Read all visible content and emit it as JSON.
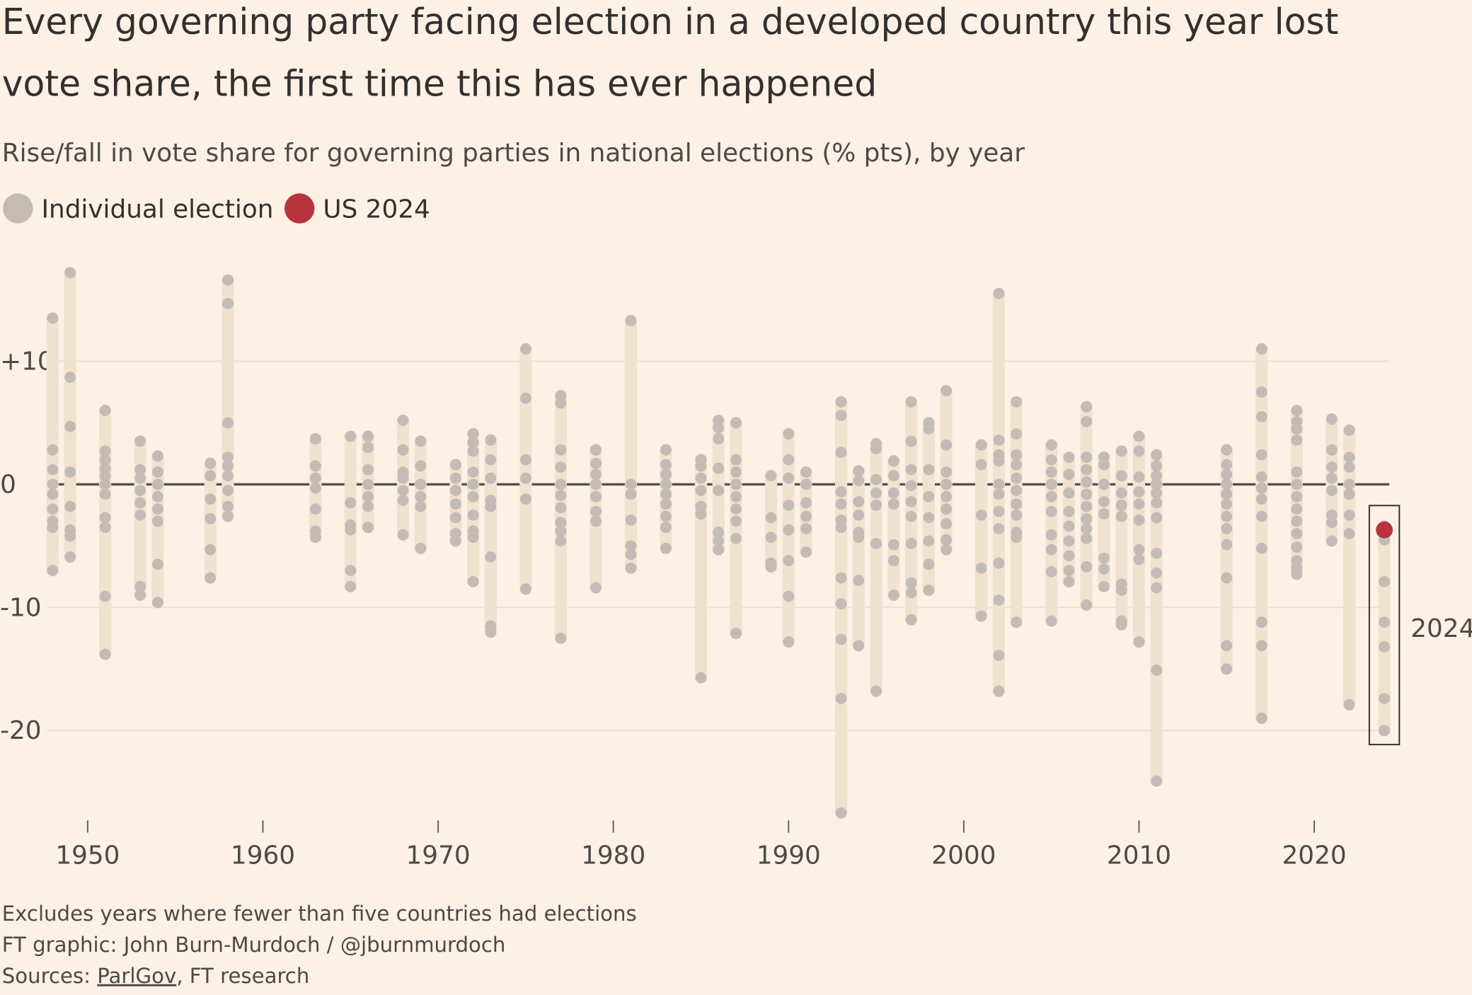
{
  "chart_data": {
    "type": "strip",
    "title_lines": [
      "Every governing party facing election in a developed country this year lost",
      "vote share, the first time this has ever happened"
    ],
    "subtitle": "Rise/fall in vote share for governing parties in national elections (% pts), by year",
    "annotation": "2024",
    "notes": [
      "Excludes years where fewer than five countries had elections",
      "FT graphic: John Burn-Murdoch / @jburnmurdoch"
    ],
    "sources": {
      "label": "Sources:",
      "link": "ParlGov",
      "rest": ", FT research"
    },
    "xlim": [
      1945,
      2029
    ],
    "ylim": [
      -27,
      18
    ],
    "xticks": [
      1950,
      1960,
      1970,
      1980,
      1990,
      2000,
      2010,
      2020
    ],
    "yticks": [
      {
        "value": 10,
        "label": "+10"
      },
      0,
      -10,
      -20
    ],
    "grid": true,
    "x": [
      1948,
      1949,
      1951,
      1953,
      1954,
      1957,
      1958,
      1963,
      1965,
      1966,
      1968,
      1969,
      1971,
      1972,
      1973,
      1975,
      1977,
      1979,
      1981,
      1983,
      1985,
      1986,
      1987,
      1989,
      1990,
      1991,
      1993,
      1994,
      1995,
      1996,
      1997,
      1998,
      1999,
      2001,
      2002,
      2003,
      2005,
      2006,
      2007,
      2008,
      2009,
      2010,
      2011,
      2015,
      2017,
      2019,
      2021,
      2022,
      2024
    ],
    "series": [
      {
        "name": "Individual election",
        "color": "#c4bcb4",
        "values": [
          [
            13.5,
            2.8,
            1.2,
            0,
            -0.8,
            -2,
            -3,
            -3.5,
            -7
          ],
          [
            17.2,
            8.7,
            4.7,
            1,
            -1.8,
            -3.7,
            -4.2,
            -5.9
          ],
          [
            6,
            2.7,
            2,
            1.3,
            0.7,
            0,
            -0.8,
            -2.7,
            -3.5,
            -9.1,
            -13.8
          ],
          [
            3.5,
            1.2,
            0.5,
            -0.5,
            -1.5,
            -2.5,
            -8.3,
            -9
          ],
          [
            2.3,
            1,
            0,
            -1,
            -2,
            -3,
            -6.5,
            -9.6
          ],
          [
            1.7,
            0.7,
            -1.2,
            -2.8,
            -5.3,
            -7.6
          ],
          [
            16.6,
            14.7,
            5,
            2.2,
            1.5,
            0.7,
            -0.5,
            -1.8,
            -2.6
          ],
          [
            3.7,
            1.5,
            0.5,
            -0.3,
            -2,
            -3.8,
            -4.3
          ],
          [
            3.9,
            -1.5,
            -3.3,
            -3.7,
            -7,
            -8.3
          ],
          [
            3.9,
            3,
            1.2,
            0,
            -1,
            -1.8,
            -3.5
          ],
          [
            5.2,
            2.8,
            1,
            0.5,
            -0.5,
            -1.3,
            -4.1
          ],
          [
            3.5,
            1.5,
            0,
            -1,
            -1.8,
            -5.2
          ],
          [
            1.6,
            0.5,
            -0.5,
            -1.6,
            -2.7,
            -4,
            -4.6
          ],
          [
            4.1,
            3.4,
            2.7,
            1,
            0,
            -1,
            -2.5,
            -3.8,
            -4.3,
            -7.9
          ],
          [
            3.6,
            2,
            0.5,
            -1.3,
            -1.8,
            -5.9,
            -11.5,
            -12
          ],
          [
            11,
            7,
            2,
            0.5,
            -1.2,
            -8.5
          ],
          [
            7.2,
            6.6,
            2.8,
            1.4,
            0,
            -0.9,
            -1.9,
            -3.1,
            -3.8,
            -4.6,
            -12.5
          ],
          [
            2.8,
            1.7,
            0.8,
            0,
            -1,
            -2.2,
            -3,
            -8.4
          ],
          [
            13.3,
            0,
            -0.8,
            -2.9,
            -5,
            -5.7,
            -6.8
          ],
          [
            2.8,
            1.6,
            0.8,
            0,
            -0.8,
            -1.6,
            -2.6,
            -3.5,
            -5.2
          ],
          [
            2,
            1.5,
            0.5,
            -0.5,
            -1.8,
            -2.4,
            -15.7
          ],
          [
            5.2,
            4.6,
            3.7,
            1.3,
            -0.5,
            -3.9,
            -4.6,
            -5.3
          ],
          [
            5,
            2,
            1,
            0,
            -1,
            -2,
            -3,
            -4.4,
            -12.1
          ],
          [
            0.7,
            -2.7,
            -4.3,
            -6.4,
            -6.7
          ],
          [
            4.1,
            2,
            0.5,
            -1.7,
            -3.7,
            -6.2,
            -9.1,
            -12.8
          ],
          [
            1,
            0,
            -1.5,
            -2.6,
            -3.6,
            -5.5
          ],
          [
            6.7,
            5.6,
            2.6,
            -0.6,
            -1.6,
            -2.9,
            -3.5,
            -7.6,
            -9.7,
            -12.6,
            -17.4,
            -26.7
          ],
          [
            1.1,
            0.3,
            -1.4,
            -2.5,
            -3.9,
            -4.3,
            -7.8,
            -13.1
          ],
          [
            3.3,
            2.9,
            0.4,
            -0.7,
            -1.7,
            -4.8,
            -16.8
          ],
          [
            1.9,
            0.7,
            -0.7,
            -1.6,
            -4.9,
            -6.2,
            -9
          ],
          [
            6.7,
            3.5,
            1.2,
            -0.1,
            -1.4,
            -2.6,
            -4.8,
            -8,
            -8.8,
            -11
          ],
          [
            5,
            4.5,
            1.2,
            -1,
            -2.7,
            -4.6,
            -6.5,
            -8.6
          ],
          [
            7.6,
            3.2,
            1,
            0,
            -1,
            -2,
            -3.2,
            -4.5,
            -5.3
          ],
          [
            3.2,
            1.6,
            -2.5,
            -6.8,
            -10.7
          ],
          [
            15.5,
            3.6,
            2.4,
            1.9,
            0,
            -0.8,
            -2.2,
            -3.6,
            -6.4,
            -9.4,
            -13.9,
            -16.8
          ],
          [
            6.7,
            4.1,
            2.4,
            1.6,
            0.5,
            -0.5,
            -1.6,
            -2.5,
            -3.9,
            -4.3,
            -11.2
          ],
          [
            3.2,
            2,
            1,
            0,
            -1,
            -2.2,
            -4.1,
            -5.3,
            -7.1,
            -11.1
          ],
          [
            2.2,
            0.8,
            -0.7,
            -2.2,
            -3.4,
            -4.6,
            -5.8,
            -7,
            -7.9
          ],
          [
            6.3,
            5.1,
            2.2,
            1.2,
            0.2,
            -0.8,
            -1.8,
            -2.8,
            -3.6,
            -4.4,
            -6.7,
            -9.8
          ],
          [
            2.2,
            1.6,
            0,
            -1.4,
            -2.4,
            -6,
            -6.9,
            -8.3
          ],
          [
            2.7,
            0.7,
            -0.7,
            -1.7,
            -2.6,
            -8.1,
            -8.6,
            -11.1,
            -11.4
          ],
          [
            3.9,
            2.7,
            0.6,
            -0.6,
            -1.6,
            -2.9,
            -5.3,
            -6.1,
            -12.8
          ],
          [
            2.4,
            1.5,
            0.7,
            0,
            -0.7,
            -1.5,
            -2.7,
            -5.6,
            -7.2,
            -8.4,
            -15.1,
            -24.1
          ],
          [
            2.8,
            1.6,
            0.8,
            0,
            -0.8,
            -1.6,
            -2.6,
            -3.6,
            -4.9,
            -7.6,
            -13.1,
            -15
          ],
          [
            11,
            7.5,
            5.5,
            2.4,
            0.6,
            -0.3,
            -1.2,
            -2.6,
            -5.2,
            -11.2,
            -13.1,
            -19
          ],
          [
            6,
            5.1,
            4.5,
            3.6,
            1,
            0,
            -1,
            -2,
            -3,
            -4,
            -5.1,
            -6.2,
            -6.8,
            -7.3
          ],
          [
            5.3,
            2.8,
            1.4,
            0.5,
            -0.5,
            -2.5,
            -3.1,
            -4.6
          ],
          [
            4.4,
            2.2,
            1.4,
            0,
            -0.8,
            -2.5,
            -4,
            -17.9
          ],
          [
            -3.4,
            -4.5,
            -7.9,
            -11.2,
            -13.2,
            -17.4,
            -20
          ]
        ]
      },
      {
        "name": "US 2024",
        "color": "#b8333b",
        "x": [
          2024
        ],
        "values": [
          -3.7
        ]
      }
    ]
  }
}
